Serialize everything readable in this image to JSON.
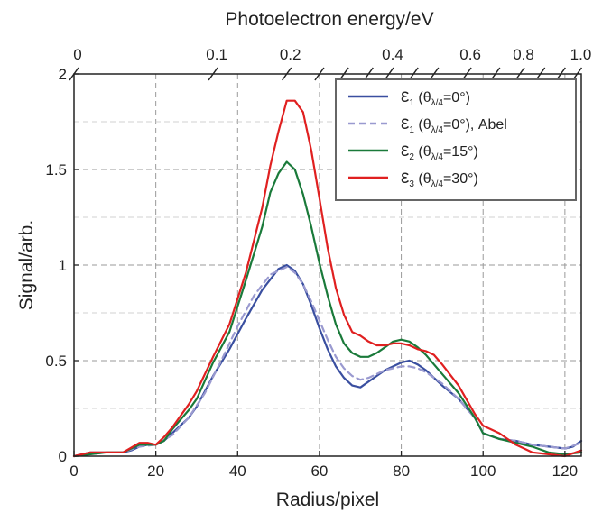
{
  "chart_data": {
    "type": "line",
    "xlabel": "Radius/pixel",
    "ylabel": "Signal/arb.",
    "top_xlabel": "Photoelectron energy/eV",
    "xlim": [
      0,
      124
    ],
    "ylim": [
      0,
      2
    ],
    "x_ticks": [
      0,
      20,
      40,
      60,
      80,
      100,
      120
    ],
    "x_tick_labels": [
      "0",
      "20",
      "40",
      "60",
      "80",
      "100",
      "120"
    ],
    "y_ticks": [
      0,
      0.5,
      1,
      1.5,
      2
    ],
    "y_tick_labels": [
      "0",
      "0.5",
      "1",
      "1.5",
      "2"
    ],
    "top_ticks": [
      {
        "radius": 0,
        "label": "0"
      },
      {
        "radius": 34,
        "label": "0.1"
      },
      {
        "radius": 52,
        "label": "0.2"
      },
      {
        "radius": 60,
        "label": ""
      },
      {
        "radius": 66,
        "label": ""
      },
      {
        "radius": 72,
        "label": ""
      },
      {
        "radius": 77,
        "label": "0.4"
      },
      {
        "radius": 83,
        "label": ""
      },
      {
        "radius": 88,
        "label": ""
      },
      {
        "radius": 96,
        "label": "0.6"
      },
      {
        "radius": 103,
        "label": ""
      },
      {
        "radius": 109,
        "label": "0.8"
      },
      {
        "radius": 114,
        "label": ""
      },
      {
        "radius": 119,
        "label": ""
      },
      {
        "radius": 123,
        "label": "1.0"
      }
    ],
    "grid": true,
    "legend_position": "top-right",
    "series": [
      {
        "name": "ε1 (θλ/4=0°)",
        "legend_main": "ε",
        "legend_sub": "1",
        "legend_paren_open": " (θ",
        "legend_paren_sub": "λ/4",
        "legend_rest": "=0°)",
        "color": "#3a4fa0",
        "dash": "solid",
        "x": [
          0,
          2,
          4,
          6,
          8,
          10,
          12,
          14,
          16,
          18,
          20,
          22,
          24,
          26,
          28,
          30,
          34,
          38,
          42,
          46,
          50,
          52,
          54,
          56,
          58,
          60,
          62,
          64,
          66,
          68,
          70,
          72,
          74,
          76,
          78,
          80,
          82,
          84,
          86,
          88,
          90,
          94,
          98,
          100,
          104,
          108,
          112,
          116,
          120,
          122,
          124
        ],
        "y": [
          0,
          0.01,
          0.02,
          0.02,
          0.02,
          0.02,
          0.02,
          0.03,
          0.05,
          0.06,
          0.06,
          0.08,
          0.12,
          0.16,
          0.2,
          0.26,
          0.42,
          0.56,
          0.72,
          0.87,
          0.98,
          1.0,
          0.97,
          0.9,
          0.79,
          0.67,
          0.56,
          0.47,
          0.41,
          0.37,
          0.36,
          0.39,
          0.42,
          0.45,
          0.47,
          0.49,
          0.5,
          0.48,
          0.45,
          0.41,
          0.37,
          0.3,
          0.2,
          0.12,
          0.09,
          0.08,
          0.06,
          0.05,
          0.04,
          0.05,
          0.08
        ]
      },
      {
        "name": "ε1 (θλ/4=0°), Abel",
        "legend_main": "ε",
        "legend_sub": "1",
        "legend_paren_open": " (θ",
        "legend_paren_sub": "λ/4",
        "legend_rest": "=0°), Abel",
        "color": "#9a9ad0",
        "dash": "dashed",
        "x": [
          0,
          4,
          8,
          12,
          16,
          20,
          24,
          28,
          32,
          36,
          40,
          44,
          48,
          52,
          54,
          56,
          58,
          60,
          62,
          64,
          66,
          68,
          70,
          72,
          74,
          76,
          78,
          80,
          82,
          84,
          86,
          88,
          90,
          94,
          98,
          100,
          104,
          108,
          112,
          116,
          120,
          124
        ],
        "y": [
          0,
          0.01,
          0.02,
          0.02,
          0.05,
          0.06,
          0.11,
          0.2,
          0.33,
          0.5,
          0.68,
          0.84,
          0.95,
          0.99,
          0.96,
          0.9,
          0.81,
          0.71,
          0.61,
          0.52,
          0.46,
          0.42,
          0.4,
          0.41,
          0.43,
          0.45,
          0.46,
          0.47,
          0.47,
          0.46,
          0.44,
          0.41,
          0.38,
          0.3,
          0.2,
          0.12,
          0.09,
          0.08,
          0.06,
          0.05,
          0.04,
          0.07
        ]
      },
      {
        "name": "ε2 (θλ/4=15°)",
        "legend_main": "ε",
        "legend_sub": "2",
        "legend_paren_open": " (θ",
        "legend_paren_sub": "λ/4",
        "legend_rest": "=15°)",
        "color": "#1a7a3a",
        "dash": "solid",
        "x": [
          0,
          4,
          8,
          12,
          16,
          18,
          20,
          22,
          24,
          26,
          28,
          30,
          34,
          38,
          42,
          46,
          48,
          50,
          52,
          54,
          56,
          58,
          60,
          62,
          64,
          66,
          68,
          70,
          72,
          74,
          76,
          78,
          80,
          82,
          84,
          86,
          88,
          90,
          94,
          98,
          100,
          104,
          108,
          112,
          116,
          120,
          124
        ],
        "y": [
          0,
          0.01,
          0.02,
          0.02,
          0.06,
          0.06,
          0.06,
          0.08,
          0.14,
          0.19,
          0.24,
          0.3,
          0.49,
          0.65,
          0.92,
          1.2,
          1.38,
          1.48,
          1.54,
          1.5,
          1.37,
          1.2,
          1.01,
          0.84,
          0.69,
          0.59,
          0.54,
          0.52,
          0.52,
          0.54,
          0.57,
          0.6,
          0.61,
          0.6,
          0.57,
          0.53,
          0.48,
          0.43,
          0.33,
          0.2,
          0.12,
          0.09,
          0.07,
          0.05,
          0.02,
          0.01,
          0.02
        ]
      },
      {
        "name": "ε3 (θλ/4=30°)",
        "legend_main": "ε",
        "legend_sub": "3",
        "legend_paren_open": " (θ",
        "legend_paren_sub": "λ/4",
        "legend_rest": "=30°)",
        "color": "#e02020",
        "dash": "solid",
        "x": [
          0,
          4,
          8,
          12,
          16,
          18,
          20,
          22,
          24,
          26,
          28,
          30,
          34,
          38,
          42,
          46,
          48,
          50,
          52,
          54,
          56,
          58,
          60,
          62,
          64,
          66,
          68,
          70,
          72,
          74,
          76,
          78,
          80,
          82,
          84,
          86,
          88,
          90,
          94,
          98,
          100,
          104,
          108,
          112,
          116,
          120,
          124
        ],
        "y": [
          0,
          0.02,
          0.02,
          0.02,
          0.07,
          0.07,
          0.06,
          0.1,
          0.15,
          0.21,
          0.27,
          0.34,
          0.52,
          0.69,
          0.96,
          1.3,
          1.52,
          1.7,
          1.86,
          1.86,
          1.8,
          1.6,
          1.35,
          1.09,
          0.88,
          0.74,
          0.65,
          0.63,
          0.6,
          0.58,
          0.58,
          0.59,
          0.59,
          0.58,
          0.56,
          0.55,
          0.53,
          0.48,
          0.37,
          0.22,
          0.16,
          0.12,
          0.06,
          0.02,
          0.01,
          0.0,
          0.03
        ]
      }
    ]
  }
}
